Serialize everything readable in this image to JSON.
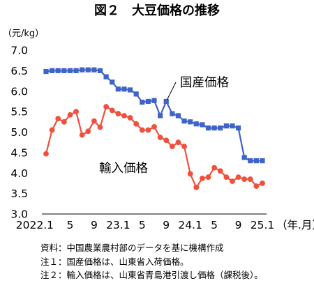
{
  "chart_data": {
    "type": "line",
    "title": "図２　大豆価格の推移",
    "ylabel": "（元/kg）",
    "xunit": "（年.月）",
    "ylim": [
      3.0,
      7.0
    ],
    "yticks": [
      "7.0",
      "6.5",
      "6.0",
      "5.5",
      "5.0",
      "4.5",
      "4.0",
      "3.5",
      "3.0"
    ],
    "x": [
      "2022.1",
      "2022.2",
      "2022.3",
      "2022.4",
      "2022.5",
      "2022.6",
      "2022.7",
      "2022.8",
      "2022.9",
      "2022.10",
      "2022.11",
      "2022.12",
      "2023.1",
      "2023.2",
      "2023.3",
      "2023.4",
      "2023.5",
      "2023.6",
      "2023.7",
      "2023.8",
      "2023.9",
      "2023.10",
      "2023.11",
      "2023.12",
      "2024.1",
      "2024.2",
      "2024.3",
      "2024.4",
      "2024.5",
      "2024.6",
      "2024.7",
      "2024.8",
      "2024.9",
      "2024.10",
      "2024.11",
      "2024.12",
      "2025.1"
    ],
    "xtick_labels": [
      {
        "index": 0,
        "text": "2022.1"
      },
      {
        "index": 4,
        "text": "5"
      },
      {
        "index": 8,
        "text": "9"
      },
      {
        "index": 12,
        "text": "23.1"
      },
      {
        "index": 16,
        "text": "5"
      },
      {
        "index": 20,
        "text": "9"
      },
      {
        "index": 24,
        "text": "24.1"
      },
      {
        "index": 28,
        "text": "5"
      },
      {
        "index": 32,
        "text": "9"
      },
      {
        "index": 36,
        "text": "25.1"
      }
    ],
    "series": [
      {
        "name": "国産価格",
        "color": "#3f63c9",
        "marker": "square",
        "values": [
          6.48,
          6.5,
          6.5,
          6.5,
          6.5,
          6.5,
          6.52,
          6.52,
          6.52,
          6.5,
          6.35,
          6.22,
          6.05,
          6.05,
          6.03,
          5.93,
          5.73,
          5.75,
          5.77,
          5.4,
          5.75,
          5.45,
          5.4,
          5.27,
          5.25,
          5.2,
          5.18,
          5.1,
          5.1,
          5.1,
          5.15,
          5.15,
          5.1,
          4.38,
          4.3,
          4.3,
          4.3
        ]
      },
      {
        "name": "輸入価格",
        "color": "#f0503c",
        "marker": "circle",
        "values": [
          4.47,
          5.05,
          5.33,
          5.25,
          5.42,
          5.5,
          4.93,
          5.02,
          5.27,
          5.12,
          5.62,
          5.53,
          5.45,
          5.4,
          5.35,
          5.2,
          5.05,
          5.05,
          5.13,
          4.87,
          4.8,
          4.65,
          4.75,
          4.65,
          3.98,
          3.65,
          3.87,
          3.9,
          4.13,
          4.05,
          3.9,
          3.8,
          3.9,
          3.85,
          3.85,
          3.68,
          3.75
        ]
      }
    ]
  },
  "notes": [
    "資料：中国農業農村部のデータを基に機構作成",
    "注１：国産価格は、山東省入荷価格。",
    "注２：輸入価格は、山東省青島港引渡し価格（課税後）。"
  ]
}
